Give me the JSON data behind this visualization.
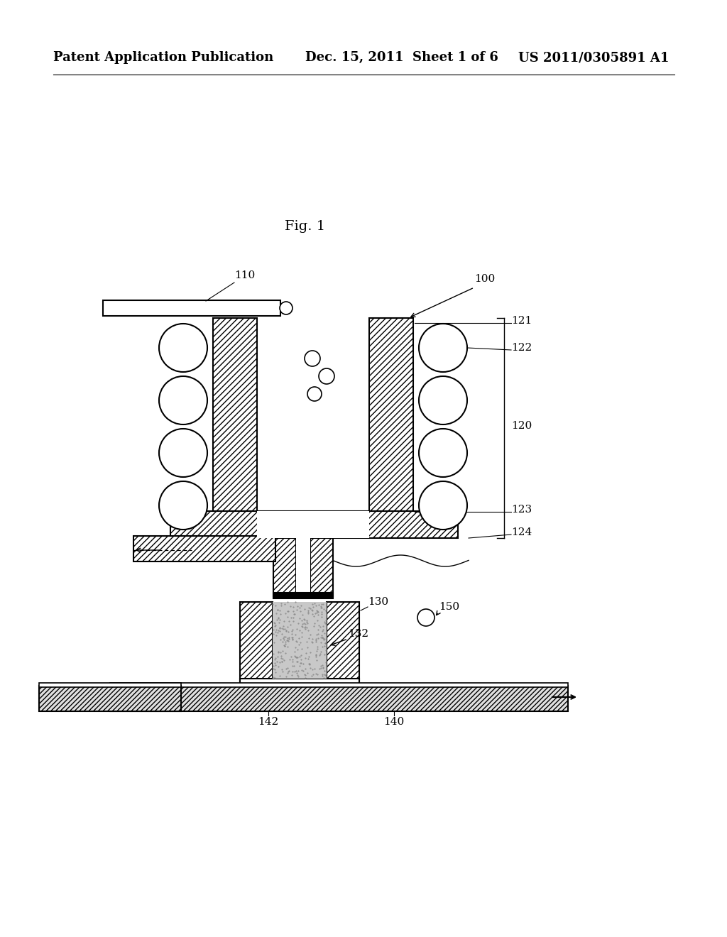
{
  "header_left": "Patent Application Publication",
  "header_mid": "Dec. 15, 2011  Sheet 1 of 6",
  "header_right": "US 2011/0305891 A1",
  "fig_label": "Fig. 1",
  "bg_color": "#ffffff"
}
